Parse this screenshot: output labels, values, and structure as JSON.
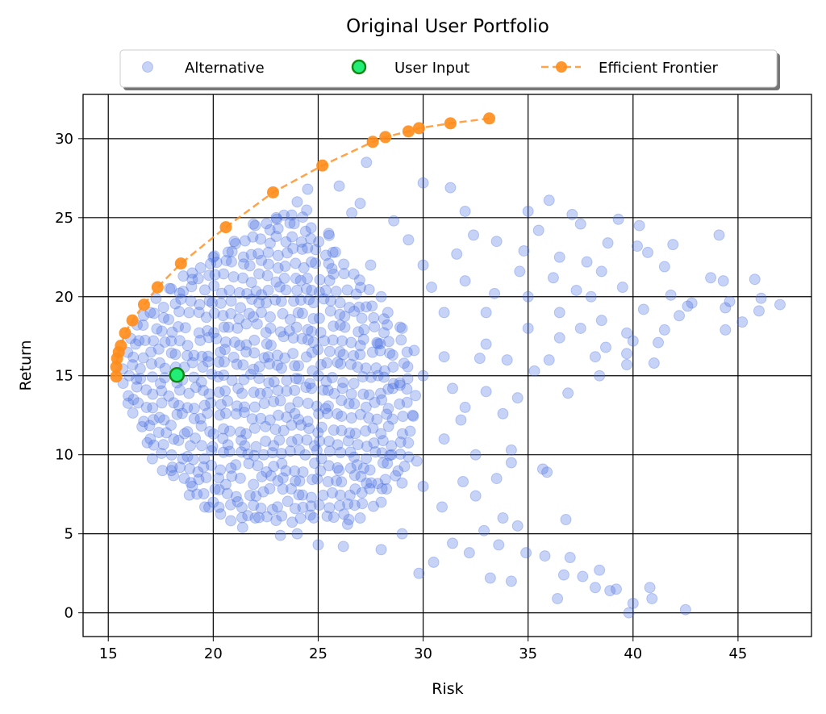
{
  "chart_data": {
    "type": "scatter",
    "title": "Original User Portfolio",
    "xlabel": "Risk",
    "ylabel": "Return",
    "xlim": [
      13.8,
      48.5
    ],
    "ylim": [
      -1.5,
      32.8
    ],
    "xticks": [
      15,
      20,
      25,
      30,
      35,
      40,
      45
    ],
    "yticks": [
      0,
      5,
      10,
      15,
      20,
      25,
      30
    ],
    "grid": true,
    "legend_placement": "top-center, above plot",
    "legend": [
      "Alternative",
      "User Input",
      "Efficient Frontier"
    ],
    "colors": {
      "alternative": "#4169E1",
      "user_fill": "#22EE77",
      "user_edge": "#118811",
      "frontier": "#FF8C1A"
    },
    "series": [
      {
        "name": "Alternative",
        "points": [
          [
            47,
            19.5
          ],
          [
            46.1,
            19.9
          ],
          [
            46,
            19.1
          ],
          [
            45.8,
            21.1
          ],
          [
            45.2,
            18.4
          ],
          [
            44.6,
            19.7
          ],
          [
            44.4,
            19.3
          ],
          [
            44.4,
            17.9
          ],
          [
            44.3,
            21
          ],
          [
            44.1,
            23.9
          ],
          [
            43.7,
            21.2
          ],
          [
            42.8,
            19.6
          ],
          [
            42.6,
            19.4
          ],
          [
            42.2,
            18.8
          ],
          [
            41.9,
            23.3
          ],
          [
            41.8,
            20.1
          ],
          [
            41.5,
            21.9
          ],
          [
            41.5,
            17.9
          ],
          [
            41.2,
            17.1
          ],
          [
            41,
            15.8
          ],
          [
            40.7,
            22.8
          ],
          [
            40.5,
            19.2
          ],
          [
            40.3,
            24.5
          ],
          [
            40,
            17.2
          ],
          [
            39.7,
            17.7
          ],
          [
            39.7,
            16.4
          ],
          [
            39.7,
            15.7
          ],
          [
            40.2,
            23.2
          ],
          [
            39.3,
            24.9
          ],
          [
            39.5,
            20.6
          ],
          [
            38.8,
            23.4
          ],
          [
            38.2,
            16.2
          ],
          [
            38.4,
            15
          ],
          [
            38.7,
            16.8
          ],
          [
            38.5,
            21.6
          ],
          [
            37.5,
            24.6
          ],
          [
            37.1,
            25.2
          ],
          [
            36,
            26.1
          ],
          [
            35,
            25.4
          ],
          [
            42.5,
            0.2
          ],
          [
            40.8,
            1.6
          ],
          [
            40.9,
            0.9
          ],
          [
            40,
            0.6
          ],
          [
            39.8,
            0
          ],
          [
            39.2,
            1.5
          ],
          [
            38.9,
            1.4
          ],
          [
            38.4,
            2.7
          ],
          [
            38.2,
            1.6
          ],
          [
            37.6,
            2.3
          ],
          [
            37,
            3.5
          ],
          [
            36.7,
            2.4
          ],
          [
            36.4,
            0.9
          ],
          [
            36.8,
            5.9
          ],
          [
            35.8,
            3.6
          ],
          [
            34.2,
            2
          ],
          [
            33.2,
            2.2
          ],
          [
            33.8,
            6
          ],
          [
            34.5,
            5.5
          ],
          [
            33.5,
            8.5
          ],
          [
            34.2,
            9.5
          ],
          [
            34.2,
            10.3
          ],
          [
            35.7,
            9.1
          ],
          [
            35.9,
            8.9
          ],
          [
            34.5,
            13.6
          ],
          [
            36.9,
            13.9
          ],
          [
            30.5,
            3.2
          ],
          [
            29.8,
            2.5
          ],
          [
            31.4,
            4.4
          ],
          [
            32.2,
            3.8
          ],
          [
            26.2,
            4.2
          ],
          [
            25,
            4.3
          ],
          [
            28,
            4
          ],
          [
            30,
            27.2
          ],
          [
            31.3,
            26.9
          ],
          [
            27.3,
            28.5
          ],
          [
            26,
            27
          ],
          [
            26.6,
            25.3
          ],
          [
            32,
            25.4
          ],
          [
            32.4,
            23.9
          ],
          [
            33.5,
            23.5
          ],
          [
            34.6,
            21.6
          ],
          [
            35.5,
            24.2
          ],
          [
            36.5,
            22.5
          ],
          [
            37.8,
            22.2
          ],
          [
            35,
            18
          ],
          [
            36,
            16
          ],
          [
            33,
            17
          ],
          [
            32,
            21
          ],
          [
            31,
            19
          ],
          [
            29,
            18
          ],
          [
            30,
            15
          ],
          [
            32,
            13
          ],
          [
            31,
            11
          ],
          [
            30,
            8
          ],
          [
            28,
            7
          ],
          [
            27,
            6
          ],
          [
            26,
            9
          ],
          [
            25.5,
            24
          ],
          [
            27.5,
            22
          ],
          [
            28,
            20
          ],
          [
            30,
            22
          ],
          [
            33,
            14
          ],
          [
            32.5,
            10
          ],
          [
            34,
            16
          ],
          [
            35,
            20
          ],
          [
            36.5,
            19
          ],
          [
            37.5,
            18
          ],
          [
            38,
            20
          ],
          [
            38.5,
            18.5
          ],
          [
            33.8,
            12.6
          ],
          [
            31.8,
            12.2
          ],
          [
            31,
            16.2
          ],
          [
            33,
            19
          ],
          [
            29.5,
            12.5
          ],
          [
            28.5,
            10
          ],
          [
            29,
            5
          ],
          [
            24,
            5
          ],
          [
            22,
            6
          ],
          [
            20,
            7
          ],
          [
            19,
            8
          ],
          [
            18,
            9
          ],
          [
            17,
            11
          ],
          [
            16.2,
            13.5
          ],
          [
            16,
            15
          ],
          [
            16.3,
            17
          ],
          [
            17,
            19
          ],
          [
            18,
            20.5
          ],
          [
            19,
            21.5
          ],
          [
            20,
            22.5
          ],
          [
            21,
            23.5
          ],
          [
            22,
            24.5
          ],
          [
            23,
            25
          ],
          [
            24,
            26
          ],
          [
            24.5,
            26.8
          ],
          [
            34.8,
            22.9
          ],
          [
            36.2,
            21.2
          ],
          [
            37.3,
            20.4
          ],
          [
            35.3,
            15.3
          ],
          [
            36.5,
            17.4
          ],
          [
            33.4,
            20.2
          ],
          [
            32.7,
            16.1
          ],
          [
            31.6,
            22.7
          ],
          [
            30.4,
            20.6
          ],
          [
            29.3,
            23.6
          ],
          [
            28.6,
            24.8
          ],
          [
            27.8,
            17.1
          ],
          [
            29.7,
            9.6
          ],
          [
            30.9,
            6.7
          ],
          [
            31.9,
            8.3
          ],
          [
            32.9,
            5.2
          ],
          [
            33.6,
            4.3
          ],
          [
            34.9,
            3.8
          ],
          [
            32.5,
            7.4
          ],
          [
            27.3,
            8.2
          ],
          [
            26.4,
            5.6
          ],
          [
            23.2,
            4.9
          ],
          [
            21.4,
            5.4
          ],
          [
            28.9,
            14.4
          ],
          [
            31.4,
            14.2
          ],
          [
            27,
            25.9
          ],
          [
            25.7,
            22.8
          ]
        ],
        "dense_core_rows": [
          {
            "y": 6.0,
            "x_range": [
              20.5,
              26.5
            ]
          },
          {
            "y": 6.8,
            "x_range": [
              19.5,
              27.5
            ]
          },
          {
            "y": 7.6,
            "x_range": [
              18.8,
              28.5
            ]
          },
          {
            "y": 8.4,
            "x_range": [
              18.2,
              29
            ]
          },
          {
            "y": 9.2,
            "x_range": [
              17.6,
              29.2
            ]
          },
          {
            "y": 10.0,
            "x_range": [
              17.2,
              29.5
            ]
          },
          {
            "y": 10.8,
            "x_range": [
              16.8,
              29.5
            ]
          },
          {
            "y": 11.6,
            "x_range": [
              16.5,
              29.5
            ]
          },
          {
            "y": 12.4,
            "x_range": [
              16.2,
              29.5
            ]
          },
          {
            "y": 13.2,
            "x_range": [
              16.0,
              29.5
            ]
          },
          {
            "y": 14.0,
            "x_range": [
              15.9,
              29.5
            ]
          },
          {
            "y": 14.8,
            "x_range": [
              15.8,
              29.5
            ]
          },
          {
            "y": 15.6,
            "x_range": [
              15.8,
              29.5
            ]
          },
          {
            "y": 16.4,
            "x_range": [
              15.9,
              29.5
            ]
          },
          {
            "y": 17.2,
            "x_range": [
              16.1,
              29.2
            ]
          },
          {
            "y": 18.0,
            "x_range": [
              16.4,
              29
            ]
          },
          {
            "y": 18.8,
            "x_range": [
              16.8,
              28.5
            ]
          },
          {
            "y": 19.6,
            "x_range": [
              17.3,
              28
            ]
          },
          {
            "y": 20.4,
            "x_range": [
              17.9,
              27.5
            ]
          },
          {
            "y": 21.2,
            "x_range": [
              18.6,
              27
            ]
          },
          {
            "y": 22.0,
            "x_range": [
              19.4,
              26.5
            ]
          },
          {
            "y": 22.8,
            "x_range": [
              20.2,
              26
            ]
          },
          {
            "y": 23.6,
            "x_range": [
              21,
              25.5
            ]
          },
          {
            "y": 24.4,
            "x_range": [
              22,
              25
            ]
          },
          {
            "y": 25.2,
            "x_range": [
              23,
              24.8
            ]
          }
        ]
      },
      {
        "name": "User Input",
        "points": [
          [
            18.27,
            15.05
          ]
        ]
      },
      {
        "name": "Efficient Frontier",
        "points": [
          [
            15.38,
            14.95
          ],
          [
            15.38,
            15.56
          ],
          [
            15.42,
            16.1
          ],
          [
            15.5,
            16.5
          ],
          [
            15.6,
            16.9
          ],
          [
            15.8,
            17.7
          ],
          [
            16.15,
            18.5
          ],
          [
            16.7,
            19.5
          ],
          [
            17.35,
            20.6
          ],
          [
            18.46,
            22.1
          ],
          [
            20.6,
            24.4
          ],
          [
            22.85,
            26.6
          ],
          [
            25.2,
            28.3
          ],
          [
            27.6,
            29.8
          ],
          [
            28.2,
            30.1
          ],
          [
            29.3,
            30.46
          ],
          [
            29.8,
            30.66
          ],
          [
            31.3,
            30.97
          ],
          [
            33.15,
            31.28
          ]
        ]
      }
    ]
  }
}
